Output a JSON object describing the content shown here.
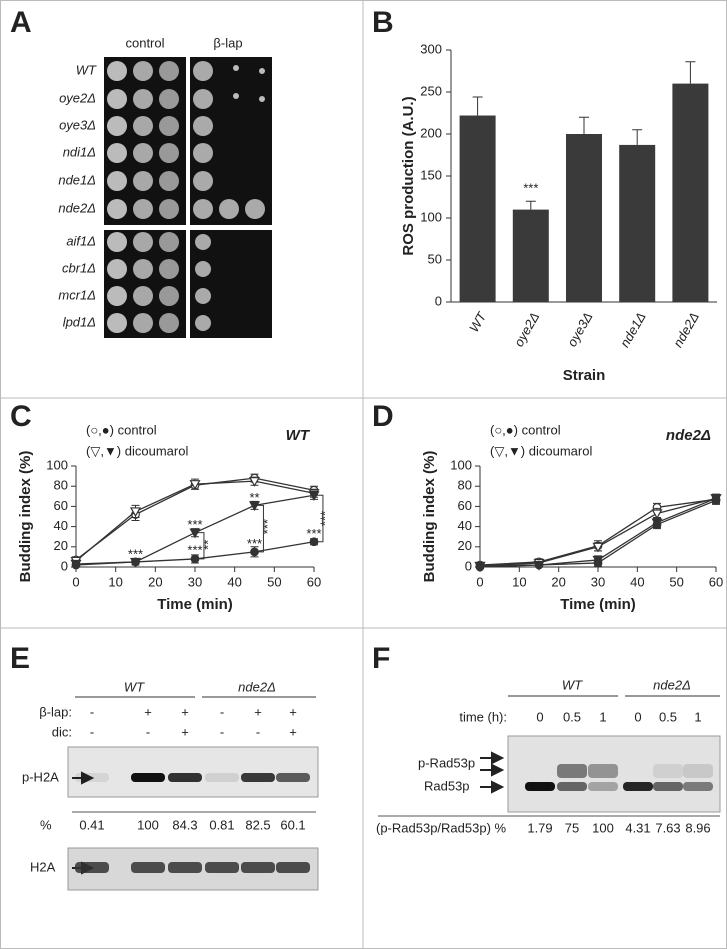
{
  "panel_labels": [
    "A",
    "B",
    "C",
    "D",
    "E",
    "F"
  ],
  "panel_a": {
    "columns": [
      "control",
      "β-lap"
    ],
    "strains": [
      "WT",
      "oye2Δ",
      "oye3Δ",
      "ndi1Δ",
      "nde1Δ",
      "nde2Δ",
      "aif1Δ",
      "cbr1Δ",
      "mcr1Δ",
      "lpd1Δ"
    ]
  },
  "chart_data": [
    {
      "type": "bar",
      "ylabel": "ROS production (A.U.)",
      "xlabel": "Strain",
      "categories": [
        "WT",
        "oye2Δ",
        "oye3Δ",
        "nde1Δ",
        "nde2Δ"
      ],
      "values": [
        222,
        110,
        200,
        187,
        260
      ],
      "errors": [
        22,
        10,
        20,
        18,
        26
      ],
      "color": "#3a3a3a",
      "ylim": [
        0,
        300
      ],
      "yticks": [
        0,
        50,
        100,
        150,
        200,
        250,
        300
      ],
      "annotations": [
        "***"
      ]
    },
    {
      "type": "line",
      "title": "WT",
      "ylabel": "Budding index (%)",
      "xlabel": "Time (min)",
      "legend": [
        "(○,●) control",
        "(▽,▼) dicoumarol"
      ],
      "x": [
        0,
        15,
        30,
        45,
        60
      ],
      "series": [
        {
          "marker": "circle",
          "filled": false,
          "values": [
            7,
            52,
            81,
            88,
            76
          ],
          "errors": [
            3,
            6,
            4,
            4,
            4
          ]
        },
        {
          "marker": "triangle",
          "filled": false,
          "values": [
            6,
            55,
            82,
            85,
            73
          ],
          "errors": [
            3,
            6,
            5,
            4,
            4
          ]
        },
        {
          "marker": "triangle",
          "filled": true,
          "values": [
            3,
            5,
            34,
            61,
            71
          ],
          "errors": [
            2,
            3,
            4,
            4,
            4
          ]
        },
        {
          "marker": "circle",
          "filled": true,
          "values": [
            2,
            5,
            8,
            15,
            25
          ],
          "errors": [
            2,
            3,
            4,
            5,
            3
          ]
        }
      ],
      "color": "#333333",
      "xlim": [
        0,
        60
      ],
      "xticks": [
        0,
        10,
        20,
        30,
        40,
        50,
        60
      ],
      "ylim": [
        0,
        100
      ],
      "yticks": [
        0,
        20,
        40,
        60,
        80,
        100
      ],
      "annotations": [
        "***",
        "***",
        "***",
        "**",
        "***",
        "***",
        "**",
        "***",
        "***"
      ]
    },
    {
      "type": "line",
      "title": "nde2Δ",
      "ylabel": "Budding index (%)",
      "xlabel": "Time (min)",
      "legend": [
        "(○,●) control",
        "(▽,▼) dicoumarol"
      ],
      "x": [
        0,
        15,
        30,
        45,
        60
      ],
      "series": [
        {
          "marker": "circle",
          "filled": false,
          "values": [
            2,
            5,
            21,
            59,
            67
          ],
          "errors": [
            2,
            3,
            5,
            4,
            4
          ]
        },
        {
          "marker": "triangle",
          "filled": false,
          "values": [
            1,
            4,
            20,
            53,
            68
          ],
          "errors": [
            2,
            3,
            4,
            5,
            4
          ]
        },
        {
          "marker": "triangle",
          "filled": true,
          "values": [
            1,
            2,
            7,
            44,
            68
          ],
          "errors": [
            1,
            2,
            4,
            5,
            4
          ]
        },
        {
          "marker": "circle",
          "filled": true,
          "values": [
            0,
            2,
            4,
            42,
            66
          ],
          "errors": [
            1,
            2,
            3,
            4,
            4
          ]
        }
      ],
      "color": "#333333",
      "xlim": [
        0,
        60
      ],
      "xticks": [
        0,
        10,
        20,
        30,
        40,
        50,
        60
      ],
      "ylim": [
        0,
        100
      ],
      "yticks": [
        0,
        20,
        40,
        60,
        80,
        100
      ]
    }
  ],
  "panel_e": {
    "groups": [
      "WT",
      "nde2Δ"
    ],
    "rows": [
      {
        "label": "β-lap:",
        "signs": [
          "-",
          "+",
          "+",
          "-",
          "+",
          "+"
        ]
      },
      {
        "label": "dic:",
        "signs": [
          "-",
          "-",
          "+",
          "-",
          "-",
          "+"
        ]
      }
    ],
    "bands": [
      "p-H2A",
      "H2A"
    ],
    "quant_label": "%",
    "quant": [
      0.41,
      100,
      84.3,
      0.81,
      82.5,
      60.1
    ]
  },
  "panel_f": {
    "groups": [
      "WT",
      "nde2Δ"
    ],
    "time_label": "time (h):",
    "times": [
      0,
      0.5,
      1,
      0,
      0.5,
      1
    ],
    "bands": [
      "p-Rad53p",
      "Rad53p"
    ],
    "quant_label": "(p-Rad53p/Rad53p) %",
    "quant": [
      1.79,
      75,
      100,
      4.31,
      7.63,
      8.96
    ]
  }
}
